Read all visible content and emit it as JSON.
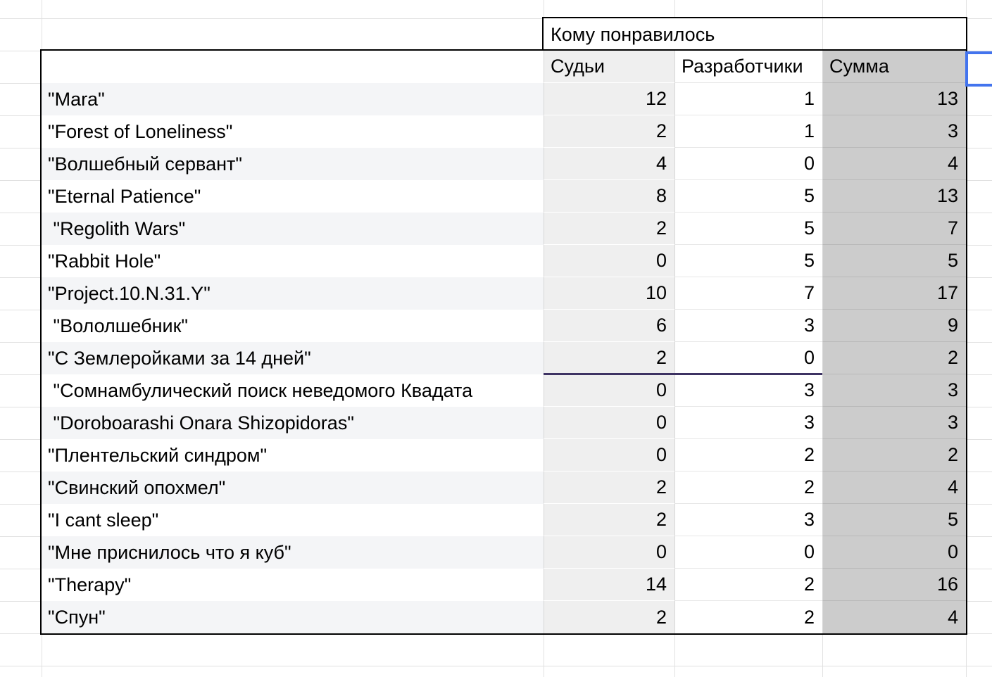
{
  "sheet": {
    "merged_header": "Кому понравилось",
    "columns": [
      "Судьи",
      "Разработчики",
      "Сумма"
    ],
    "rows": [
      {
        "title": "\"Mara\"",
        "judges": "12",
        "developers": "1",
        "sum": "13"
      },
      {
        "title": "\"Forest of Loneliness\"",
        "judges": "2",
        "developers": "1",
        "sum": "3"
      },
      {
        "title": "\"Волшебный сервант\"",
        "judges": "4",
        "developers": "0",
        "sum": "4"
      },
      {
        "title": "\"Eternal Patience\"",
        "judges": "8",
        "developers": "5",
        "sum": "13"
      },
      {
        "title": " \"Regolith Wars\"",
        "judges": "2",
        "developers": "5",
        "sum": "7"
      },
      {
        "title": "\"Rabbit Hole\"",
        "judges": "0",
        "developers": "5",
        "sum": "5"
      },
      {
        "title": "\"Project.10.N.31.Y\"",
        "judges": "10",
        "developers": "7",
        "sum": "17"
      },
      {
        "title": " \"Вололшебник\"",
        "judges": "6",
        "developers": "3",
        "sum": "9"
      },
      {
        "title": "\"С Землеройками за 14 дней\"",
        "judges": "2",
        "developers": "0",
        "sum": "2"
      },
      {
        "title": " \"Сомнамбулический поиск неведомого Квадата",
        "judges": "0",
        "developers": "3",
        "sum": "3"
      },
      {
        "title": " \"Doroboarashi Onara Shizopidoras\"",
        "judges": "0",
        "developers": "3",
        "sum": "3"
      },
      {
        "title": "\"Плентельский синдром\"",
        "judges": "0",
        "developers": "2",
        "sum": "2"
      },
      {
        "title": "\"Свинский опохмел\"",
        "judges": "2",
        "developers": "2",
        "sum": "4"
      },
      {
        "title": "\"I cant sleep\"",
        "judges": "2",
        "developers": "3",
        "sum": "5"
      },
      {
        "title": "\"Мне приснилось что я куб\"",
        "judges": "0",
        "developers": "0",
        "sum": "0"
      },
      {
        "title": "\"Therapy\"",
        "judges": "14",
        "developers": "2",
        "sum": "16"
      },
      {
        "title": "\"Спун\"",
        "judges": "2",
        "developers": "2",
        "sum": "4"
      }
    ],
    "selected_cell_value": "",
    "divider": {
      "after_row_title": "\"С Землеройками за 14 дней\"",
      "spans_columns": [
        "Судьи",
        "Разработчики"
      ],
      "color": "#3e3363"
    }
  },
  "colors": {
    "selection_border": "#4374ee",
    "table_border": "#000000",
    "judges_column_fill": "#efefef",
    "developers_column_fill": "#ffffff",
    "sum_column_fill": "#cccccc",
    "row_band_fill": "#f4f5f7",
    "gridline": "#e1e1e1",
    "divider_purple": "#3e3363"
  }
}
